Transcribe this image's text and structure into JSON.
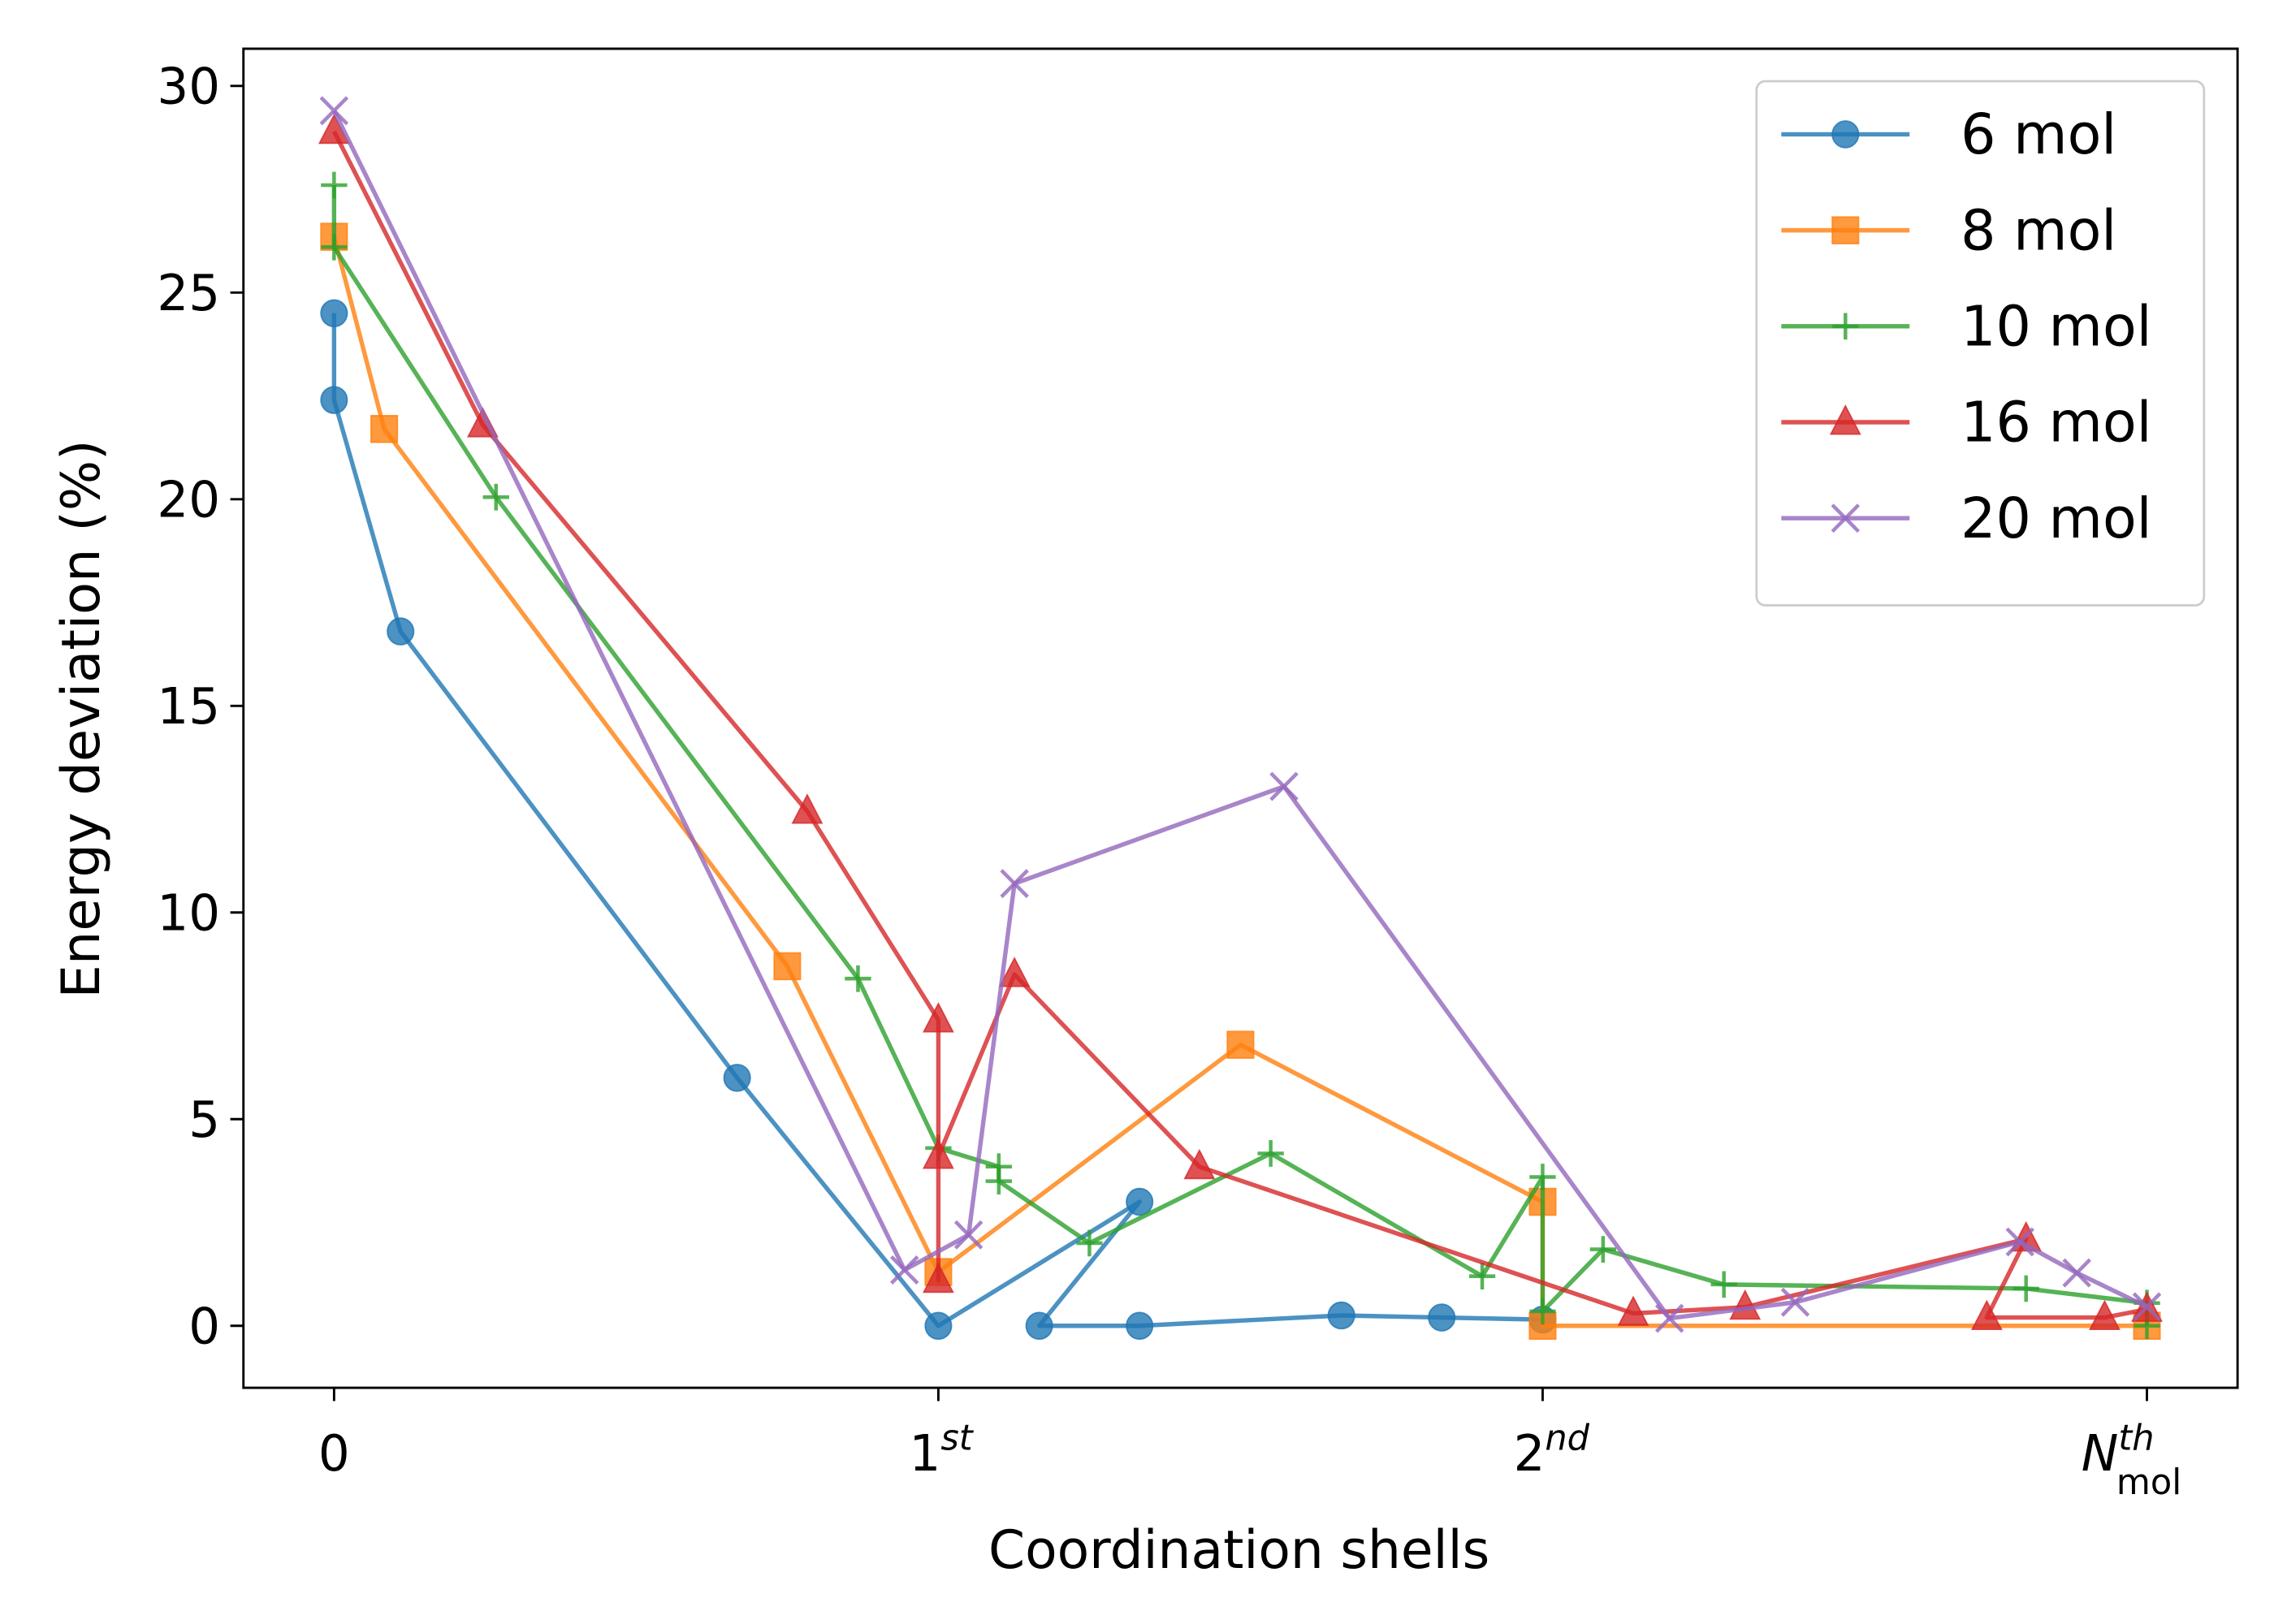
{
  "chart_data": {
    "type": "line",
    "xlabel": "Coordination shells",
    "ylabel": "Energy deviation (%)",
    "xlim": [
      -0.15,
      3.15
    ],
    "ylim": [
      -1.5,
      30.9
    ],
    "xticks": [
      0,
      {
        "value": 1,
        "label": "1",
        "sup": "st"
      },
      {
        "value": 2,
        "label": "2",
        "sup": "nd"
      },
      {
        "value": 3,
        "label": "N",
        "sup": "th",
        "sub": "mol"
      }
    ],
    "yticks": [
      0,
      5,
      10,
      15,
      20,
      25,
      30
    ],
    "legend": "upper right",
    "series": [
      {
        "name": "6 mol",
        "color": "#1f77b4",
        "marker": "circle",
        "x": [
          0,
          0,
          0.11,
          0.667,
          1,
          1.333,
          1.167,
          1.333,
          1.667,
          1.833,
          2
        ],
        "values": [
          24.5,
          22.4,
          16.8,
          6.0,
          0.0,
          3.0,
          0.0,
          0.0,
          0.25,
          0.2,
          0.15
        ]
      },
      {
        "name": "8 mol",
        "color": "#ff7f0e",
        "marker": "square",
        "x": [
          0,
          0.083,
          0.75,
          1,
          1.5,
          2,
          2,
          3
        ],
        "values": [
          26.35,
          21.7,
          8.7,
          1.3,
          6.8,
          3.0,
          0.0,
          0.0
        ]
      },
      {
        "name": "10 mol",
        "color": "#2ca02c",
        "marker": "plus",
        "x": [
          0,
          0,
          0.268,
          0.867,
          1,
          1.1,
          1.1,
          1.25,
          1.55,
          1.9,
          2,
          2,
          2.1,
          2.3,
          2.8,
          3,
          3
        ],
        "values": [
          27.6,
          26.1,
          20.05,
          8.4,
          4.3,
          3.85,
          3.5,
          2.0,
          4.17,
          1.2,
          3.6,
          0.35,
          1.85,
          1.0,
          0.9,
          0.55,
          0.0
        ]
      },
      {
        "name": "16 mol",
        "color": "#d62728",
        "marker": "triangle",
        "x": [
          0,
          0.246,
          0.783,
          1,
          1,
          1,
          1.126,
          1.432,
          2.15,
          2.335,
          2.8,
          2.735,
          2.93,
          3
        ],
        "values": [
          28.9,
          21.8,
          12.45,
          7.4,
          1.1,
          4.1,
          8.5,
          3.85,
          0.3,
          0.45,
          2.1,
          0.2,
          0.2,
          0.4
        ]
      },
      {
        "name": "20 mol",
        "color": "#9467bd",
        "marker": "x",
        "x": [
          0,
          0.944,
          1.05,
          1.126,
          1.572,
          2.21,
          2.418,
          2.79,
          2.884,
          3
        ],
        "values": [
          29.4,
          1.35,
          2.2,
          10.7,
          13.05,
          0.18,
          0.57,
          2.03,
          1.28,
          0.46
        ]
      }
    ]
  }
}
